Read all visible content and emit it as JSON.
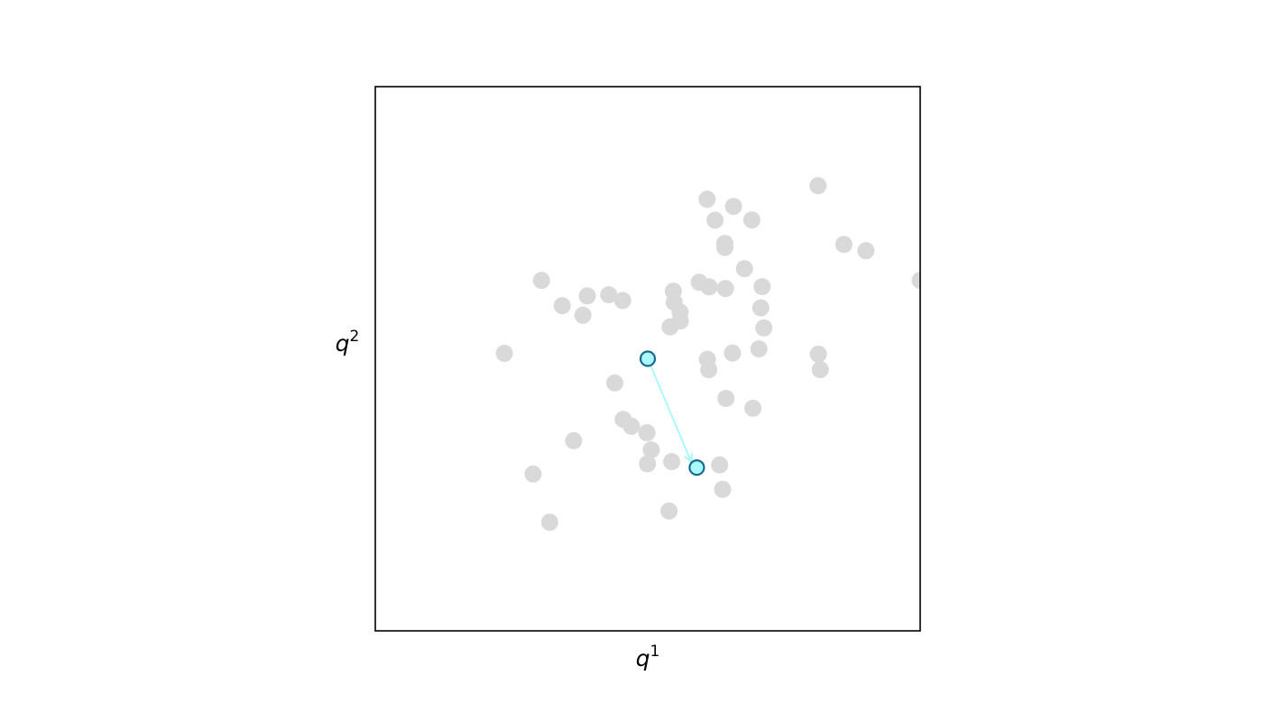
{
  "chart_data": {
    "type": "scatter",
    "title": "",
    "xlabel": "q",
    "xlabel_superscript": "1",
    "ylabel": "q",
    "ylabel_superscript": "2",
    "xlim": [
      -1,
      1
    ],
    "ylim": [
      -1,
      1
    ],
    "grid": false,
    "ticks": false,
    "series": [
      {
        "role": "background",
        "color": "#d9d9d9",
        "points": [
          [
            0.625,
            0.636
          ],
          [
            0.218,
            0.586
          ],
          [
            0.315,
            0.56
          ],
          [
            0.247,
            0.509
          ],
          [
            0.382,
            0.51
          ],
          [
            0.283,
            0.424
          ],
          [
            0.283,
            0.409
          ],
          [
            0.72,
            0.42
          ],
          [
            0.801,
            0.397
          ],
          [
            0.355,
            0.331
          ],
          [
            0.189,
            0.281
          ],
          [
            0.225,
            0.264
          ],
          [
            0.42,
            0.265
          ],
          [
            0.094,
            0.248
          ],
          [
            0.415,
            0.187
          ],
          [
            -0.39,
            0.288
          ],
          [
            -0.314,
            0.195
          ],
          [
            -0.222,
            0.231
          ],
          [
            -0.238,
            0.16
          ],
          [
            -0.143,
            0.235
          ],
          [
            -0.092,
            0.214
          ],
          [
            0.097,
            0.208
          ],
          [
            0.285,
            0.258
          ],
          [
            0.119,
            0.171
          ],
          [
            0.12,
            0.139
          ],
          [
            0.426,
            0.113
          ],
          [
            0.082,
            0.117
          ],
          [
            -0.526,
            0.02
          ],
          [
            0.311,
            0.021
          ],
          [
            0.408,
            0.036
          ],
          [
            0.626,
            0.017
          ],
          [
            0.633,
            -0.04
          ],
          [
            0.219,
            -0.002
          ],
          [
            0.224,
            -0.04
          ],
          [
            -0.121,
            -0.089
          ],
          [
            0.287,
            -0.146
          ],
          [
            0.386,
            -0.182
          ],
          [
            -0.09,
            -0.223
          ],
          [
            -0.06,
            -0.248
          ],
          [
            -0.003,
            -0.272
          ],
          [
            -0.272,
            -0.301
          ],
          [
            0.013,
            -0.335
          ],
          [
            0.088,
            -0.378
          ],
          [
            -0.001,
            -0.386
          ],
          [
            0.264,
            -0.39
          ],
          [
            -0.421,
            -0.424
          ],
          [
            0.275,
            -0.48
          ],
          [
            0.078,
            -0.56
          ],
          [
            -0.36,
            -0.601
          ],
          [
            1.0,
            0.288
          ]
        ]
      },
      {
        "role": "highlight",
        "color": "#aaf8fc",
        "edge_color": "#1a6a8e",
        "points": [
          [
            0.0,
            0.0
          ],
          [
            0.18,
            -0.4
          ]
        ]
      }
    ],
    "annotations": [
      {
        "type": "arrow",
        "from": [
          0.0,
          0.0
        ],
        "to": [
          0.16,
          -0.38
        ],
        "color": "#aaf8fc"
      }
    ]
  }
}
